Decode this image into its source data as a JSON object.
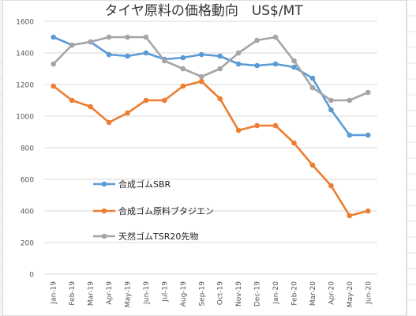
{
  "chart_data": {
    "type": "line",
    "title": "タイヤ原料の価格動向　US$/MT",
    "xlabel": "",
    "ylabel": "",
    "ylim": [
      0,
      1600
    ],
    "yticks": [
      0,
      200,
      400,
      600,
      800,
      1000,
      1200,
      1400,
      1600
    ],
    "grid": true,
    "legend_position": "left-middle",
    "categories": [
      "Jan-19",
      "Feb-19",
      "Mar-19",
      "Apr-19",
      "May-19",
      "Jun-19",
      "Jul-19",
      "Aug-19",
      "Sep-19",
      "Oct-19",
      "Nov-19",
      "Dec-19",
      "Jan-20",
      "Feb-20",
      "Mar-20",
      "Apr-20",
      "May-20",
      "Jun-20"
    ],
    "series": [
      {
        "name": "合成ゴムSBR",
        "color": "#5B9BD5",
        "values": [
          1500,
          1450,
          1470,
          1390,
          1380,
          1400,
          1360,
          1370,
          1390,
          1380,
          1330,
          1320,
          1330,
          1310,
          1240,
          1040,
          880,
          880
        ]
      },
      {
        "name": "合成ゴム原料ブタジエン",
        "color": "#ED7D31",
        "values": [
          1190,
          1100,
          1060,
          960,
          1020,
          1100,
          1100,
          1190,
          1220,
          1110,
          910,
          940,
          940,
          830,
          690,
          560,
          370,
          400
        ]
      },
      {
        "name": "天然ゴムTSR20先物",
        "color": "#A5A5A5",
        "values": [
          1330,
          1450,
          1470,
          1500,
          1500,
          1500,
          1350,
          1300,
          1250,
          1300,
          1400,
          1480,
          1500,
          1350,
          1180,
          1100,
          1100,
          1150
        ]
      }
    ]
  },
  "colors": {
    "gridline": "#D9D9D9",
    "spreadsheet_grid": "#E6E6E6",
    "chart_border": "#BFBFBF"
  }
}
